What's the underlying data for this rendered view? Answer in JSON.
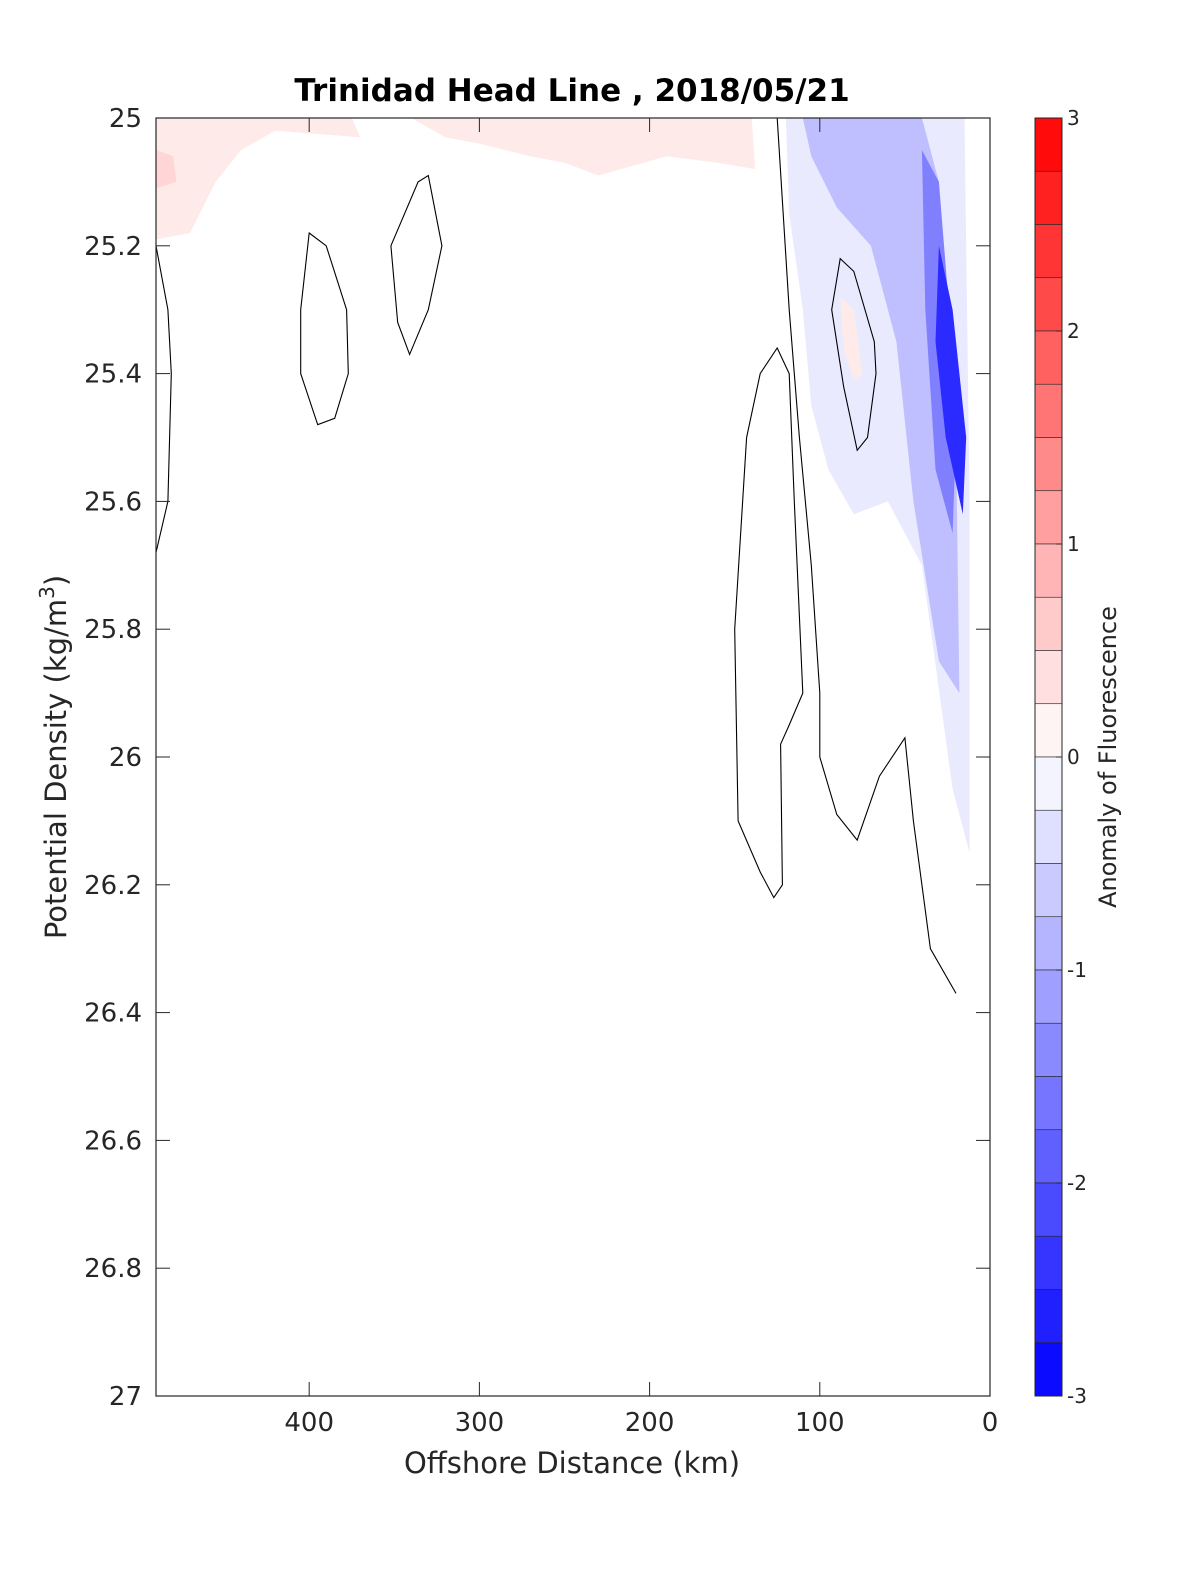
{
  "chart_data": {
    "type": "heatmap",
    "title": "Trinidad Head Line , 2018/05/21",
    "xlabel": "Offshore Distance (km)",
    "ylabel_main": "Potential Density (kg/m",
    "ylabel_sup": "3",
    "ylabel_close": ")",
    "xlim": [
      490,
      0
    ],
    "ylim": [
      25,
      27
    ],
    "x_reversed": true,
    "y_reversed": true,
    "xticks": [
      400,
      300,
      200,
      100,
      0
    ],
    "yticks": [
      25,
      25.2,
      25.4,
      25.6,
      25.8,
      26,
      26.2,
      26.4,
      26.6,
      26.8,
      27
    ],
    "ytick_labels": [
      "25",
      "25.2",
      "25.4",
      "25.6",
      "25.8",
      "26",
      "26.2",
      "26.4",
      "26.6",
      "26.8",
      "27"
    ],
    "colorbar": {
      "label": "Anomaly of Fluorescence",
      "range": [
        -3,
        3
      ],
      "ticks": [
        3,
        2,
        1,
        0,
        -1,
        -2,
        -3
      ],
      "tick_labels": [
        "3",
        "2",
        "1",
        "0",
        "-1",
        "-2",
        "-3"
      ],
      "levels": 24,
      "colormap": "blue-white-red",
      "neg_color": "#0000ff",
      "pos_color": "#ff0000"
    },
    "regions": [
      {
        "name": "surface positive anomaly offshore",
        "value": 0.25,
        "points": [
          [
            490,
            25
          ],
          [
            375,
            25
          ],
          [
            370,
            25.03
          ],
          [
            420,
            25.02
          ],
          [
            440,
            25.05
          ],
          [
            455,
            25.1
          ],
          [
            470,
            25.18
          ],
          [
            490,
            25.19
          ]
        ]
      },
      {
        "name": "surface positive core",
        "value": 0.5,
        "points": [
          [
            490,
            25.05
          ],
          [
            480,
            25.06
          ],
          [
            478,
            25.1
          ],
          [
            490,
            25.11
          ]
        ]
      },
      {
        "name": "surface positive anomaly mid",
        "value": 0.25,
        "points": [
          [
            340,
            25
          ],
          [
            140,
            25
          ],
          [
            138,
            25.08
          ],
          [
            160,
            25.07
          ],
          [
            190,
            25.06
          ],
          [
            230,
            25.09
          ],
          [
            250,
            25.07
          ],
          [
            270,
            25.06
          ],
          [
            300,
            25.04
          ],
          [
            320,
            25.03
          ]
        ]
      },
      {
        "name": "nearshore negative anomaly outer",
        "value": -0.25,
        "points": [
          [
            120,
            25
          ],
          [
            15,
            25
          ],
          [
            12,
            25.6
          ],
          [
            12,
            26.15
          ],
          [
            22,
            26.05
          ],
          [
            40,
            25.7
          ],
          [
            60,
            25.6
          ],
          [
            80,
            25.62
          ],
          [
            95,
            25.55
          ],
          [
            105,
            25.45
          ],
          [
            110,
            25.3
          ],
          [
            118,
            25.15
          ]
        ]
      },
      {
        "name": "nearshore negative anomaly mid",
        "value": -0.75,
        "points": [
          [
            110,
            25
          ],
          [
            40,
            25
          ],
          [
            30,
            25.1
          ],
          [
            25,
            25.3
          ],
          [
            20,
            25.5
          ],
          [
            18,
            25.9
          ],
          [
            30,
            25.85
          ],
          [
            45,
            25.6
          ],
          [
            55,
            25.35
          ],
          [
            70,
            25.2
          ],
          [
            90,
            25.14
          ],
          [
            105,
            25.06
          ]
        ]
      },
      {
        "name": "nearshore negative anomaly inner",
        "value": -1.5,
        "points": [
          [
            40,
            25.05
          ],
          [
            30,
            25.1
          ],
          [
            24,
            25.3
          ],
          [
            20,
            25.5
          ],
          [
            22,
            25.65
          ],
          [
            32,
            25.55
          ],
          [
            38,
            25.3
          ]
        ]
      },
      {
        "name": "nearshore negative core",
        "value": -2.5,
        "points": [
          [
            30,
            25.2
          ],
          [
            22,
            25.3
          ],
          [
            14,
            25.5
          ],
          [
            16,
            25.62
          ],
          [
            26,
            25.5
          ],
          [
            32,
            25.35
          ]
        ]
      },
      {
        "name": "small positive patch",
        "value": 0.25,
        "points": [
          [
            88,
            25.28
          ],
          [
            80,
            25.3
          ],
          [
            75,
            25.4
          ],
          [
            80,
            25.41
          ],
          [
            86,
            25.36
          ]
        ]
      }
    ],
    "contours": [
      {
        "points": [
          [
            490,
            25.2
          ],
          [
            483,
            25.3
          ],
          [
            481,
            25.4
          ],
          [
            482,
            25.5
          ],
          [
            483,
            25.6
          ],
          [
            490,
            25.68
          ]
        ]
      },
      {
        "points": [
          [
            400,
            25.18
          ],
          [
            390,
            25.2
          ],
          [
            378,
            25.3
          ],
          [
            377,
            25.4
          ],
          [
            385,
            25.47
          ],
          [
            395,
            25.48
          ],
          [
            405,
            25.4
          ],
          [
            405,
            25.3
          ],
          [
            400,
            25.18
          ]
        ],
        "closed": true
      },
      {
        "points": [
          [
            330,
            25.09
          ],
          [
            322,
            25.2
          ],
          [
            330,
            25.3
          ],
          [
            341,
            25.37
          ],
          [
            348,
            25.32
          ],
          [
            352,
            25.2
          ],
          [
            336,
            25.1
          ]
        ],
        "closed": true
      },
      {
        "points": [
          [
            125,
            25.36
          ],
          [
            118,
            25.4
          ],
          [
            115,
            25.6
          ],
          [
            110,
            25.9
          ],
          [
            118,
            25.95
          ],
          [
            123,
            25.98
          ],
          [
            122,
            26.2
          ],
          [
            127,
            26.22
          ],
          [
            135,
            26.18
          ],
          [
            148,
            26.1
          ],
          [
            150,
            25.8
          ],
          [
            143,
            25.5
          ],
          [
            135,
            25.4
          ]
        ],
        "closed": true
      },
      {
        "points": [
          [
            125,
            25
          ],
          [
            118,
            25.3
          ],
          [
            112,
            25.5
          ],
          [
            105,
            25.7
          ],
          [
            100,
            25.9
          ],
          [
            100,
            26.0
          ],
          [
            90,
            26.09
          ],
          [
            78,
            26.13
          ],
          [
            65,
            26.03
          ],
          [
            50,
            25.97
          ],
          [
            45,
            26.1
          ],
          [
            35,
            26.3
          ],
          [
            20,
            26.37
          ]
        ]
      },
      {
        "points": [
          [
            88,
            25.22
          ],
          [
            80,
            25.24
          ],
          [
            68,
            25.35
          ],
          [
            67,
            25.4
          ],
          [
            72,
            25.5
          ],
          [
            78,
            25.52
          ],
          [
            86,
            25.42
          ],
          [
            93,
            25.3
          ]
        ],
        "closed": true
      }
    ]
  }
}
